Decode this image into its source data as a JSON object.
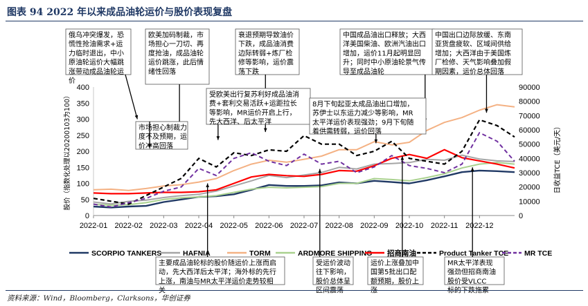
{
  "title": "图表 94   2022 年以来成品油轮运价与股价表现复盘",
  "source": "资料来源：Wind，Bloomberg，Clarksons，华创证券",
  "chart_data": {
    "type": "line",
    "ylabel_left": "股价（指数化处理以20200103为100）",
    "ylabel_right": "日收益TCE（美元/天）",
    "ylim_left": [
      0,
      400
    ],
    "ylim_right": [
      0,
      90000
    ],
    "yticks_left": [
      "0",
      "50",
      "100",
      "150",
      "200",
      "250",
      "300",
      "350",
      "400"
    ],
    "yticks_right": [
      "0",
      "10000",
      "20000",
      "30000",
      "40000",
      "50000",
      "60000",
      "70000",
      "80000",
      "90000"
    ],
    "x_range": [
      0,
      24
    ],
    "x_tick_positions": [
      0,
      2,
      4,
      6,
      8,
      10,
      12,
      14,
      16,
      18,
      20,
      22
    ],
    "x_tick_labels": [
      "2022-01",
      "2022-02",
      "2022-03",
      "2022-04",
      "2022-05",
      "2022-06",
      "2022-07",
      "2022-08",
      "2022-09",
      "2022-10",
      "2022-11",
      "2022-12"
    ],
    "series": [
      {
        "name": "SCORPIO TANKERS",
        "axis": "left",
        "color": "#1f3864",
        "style": "solid",
        "width": 2.4,
        "x": [
          0,
          1,
          2,
          3,
          4,
          5,
          6,
          7,
          8,
          9,
          10,
          11,
          12,
          13,
          14,
          15,
          16,
          17,
          18,
          19,
          20,
          21,
          22,
          23,
          24
        ],
        "y": [
          28,
          25,
          28,
          30,
          42,
          50,
          58,
          60,
          66,
          80,
          95,
          92,
          92,
          94,
          103,
          100,
          108,
          104,
          100,
          110,
          122,
          135,
          140,
          138,
          135
        ]
      },
      {
        "name": "HAFNIA",
        "axis": "left",
        "color": "#a5a5a5",
        "style": "solid",
        "width": 2,
        "x": [
          0,
          1,
          2,
          3,
          4,
          5,
          6,
          7,
          8,
          9,
          10,
          11,
          12,
          13,
          14,
          15,
          16,
          17,
          18,
          19,
          20,
          21,
          22,
          23,
          24
        ],
        "y": [
          42,
          36,
          44,
          48,
          56,
          62,
          66,
          76,
          92,
          108,
          125,
          118,
          126,
          134,
          150,
          145,
          160,
          162,
          165,
          175,
          172,
          188,
          176,
          170,
          168
        ]
      },
      {
        "name": "TORM",
        "axis": "left",
        "color": "#f4b183",
        "style": "solid",
        "width": 2,
        "x": [
          0,
          1,
          2,
          3,
          4,
          5,
          6,
          7,
          8,
          9,
          10,
          11,
          12,
          13,
          14,
          15,
          16,
          17,
          18,
          19,
          20,
          21,
          22,
          23,
          24
        ],
        "y": [
          80,
          82,
          78,
          84,
          92,
          96,
          104,
          115,
          140,
          160,
          172,
          166,
          175,
          185,
          205,
          205,
          230,
          220,
          228,
          265,
          290,
          305,
          328,
          345,
          338
        ]
      },
      {
        "name": "ARDMORE SHIPPING",
        "axis": "left",
        "color": "#a9d18e",
        "style": "solid",
        "width": 2,
        "x": [
          0,
          1,
          2,
          3,
          4,
          5,
          6,
          7,
          8,
          9,
          10,
          11,
          12,
          13,
          14,
          15,
          16,
          17,
          18,
          19,
          20,
          21,
          22,
          23,
          24
        ],
        "y": [
          35,
          32,
          34,
          40,
          50,
          55,
          58,
          62,
          72,
          82,
          88,
          86,
          88,
          90,
          100,
          100,
          115,
          112,
          108,
          118,
          130,
          148,
          160,
          165,
          160
        ]
      },
      {
        "name": "招商南油",
        "axis": "left",
        "color": "#ff0000",
        "style": "solid",
        "width": 2.2,
        "x": [
          0,
          1,
          2,
          3,
          4,
          5,
          6,
          7,
          8,
          9,
          10,
          11,
          12,
          13,
          14,
          15,
          16,
          17,
          18,
          19,
          20,
          21,
          22,
          23,
          24
        ],
        "y": [
          70,
          68,
          68,
          70,
          72,
          72,
          74,
          80,
          100,
          120,
          128,
          124,
          122,
          128,
          140,
          138,
          155,
          178,
          190,
          178,
          205,
          180,
          170,
          160,
          148
        ]
      },
      {
        "name": "Product Tanker TCE",
        "axis": "right",
        "color": "#000000",
        "style": "dash",
        "width": 2.2,
        "x": [
          0,
          1,
          2,
          3,
          4,
          5,
          6,
          7,
          8,
          9,
          10,
          11,
          12,
          13,
          14,
          15,
          16,
          17,
          18,
          19,
          20,
          21,
          22,
          23,
          24
        ],
        "y": [
          12000,
          10000,
          8000,
          14000,
          20000,
          26000,
          40000,
          34000,
          44000,
          42000,
          46000,
          45000,
          56000,
          50000,
          50000,
          42000,
          45000,
          52000,
          40000,
          38000,
          36000,
          45000,
          67000,
          63000,
          55000
        ]
      },
      {
        "name": "MR TCE",
        "axis": "right",
        "color": "#7030a0",
        "style": "dash",
        "width": 2,
        "x": [
          0,
          1,
          2,
          3,
          4,
          5,
          6,
          7,
          8,
          9,
          10,
          11,
          12,
          13,
          14,
          15,
          16,
          17,
          18,
          19,
          20,
          21,
          22,
          23,
          24
        ],
        "y": [
          8000,
          6000,
          9000,
          12000,
          17000,
          20000,
          33000,
          28000,
          40000,
          44000,
          38000,
          35000,
          43000,
          36000,
          38000,
          30000,
          34000,
          42000,
          35000,
          33000,
          30000,
          36000,
          58000,
          52000,
          38000
        ]
      }
    ],
    "annotations": [
      {
        "text": "俄乌冲突爆发，恐慌性抢油需求+运力临时退出，中小原油轮运价大幅跳涨带动成品油轮运价",
        "x": 2.5,
        "y_left": 300
      },
      {
        "text": "欧美加码制裁，市场担心一刀切、再度抢油，成品油轮运价跳涨，此后情绪性回落",
        "x": 4.9,
        "y_left": 240
      },
      {
        "text": "衰退预期导致油价下跌，成品油消费边际转弱+炼厂检修等影响，运价震荡下跌",
        "x": 9.8,
        "y_left": 260
      },
      {
        "text": "中国成品油出口释放；大西洋美国柴油、欧洲汽油出口增加，运价11月起明显回升；同时中小原油轮景气传导至成品油轮",
        "x": 18.9,
        "y_left": 290
      },
      {
        "text": "中国出口边际放缓、东南亚货盘疲软、区域间供给增加；大西洋由于美国炼厂检修、天气影响叠加假期因素，运价总体回落",
        "x": 22.4,
        "y_left": 320
      },
      {
        "text": "受欧美出行复苏利好成品油消费+套利交易活跃+运距拉长等影响，MR运价开启上行，先大西洋、后太平洋",
        "x": 7.1,
        "y_left": 235
      },
      {
        "text": "市场担心制裁力度不及预期，运价冲高回落",
        "x": 3.2,
        "y_left": 210
      },
      {
        "text": "8月下旬起亚太成品油出口增加，苏伊士以东运力减少等影响，MR太平洋运价表现强劲；9月下旬随着供需转弱，运价回落",
        "x": 16.1,
        "y_left": 225
      },
      {
        "text": "主要成品油轮标的股价随运价上涨而启动，先大西洋后太平洋；海外标的先行上涨，南油与MR太平洋运价走势较相关",
        "x": 6.5,
        "y_left": 100
      },
      {
        "text": "受运价波动往下影响，股价总体呈区间震荡",
        "x": 12.9,
        "y_left": 145
      },
      {
        "text": "运价上涨叠加中国第5批出口配额预期，股价上涨",
        "x": 17.6,
        "y_left": 185
      },
      {
        "text": "MR太平洋表现强劲但招商南油股价受VLCC标的下跌拖累",
        "x": 21.6,
        "y_left": 150
      }
    ]
  }
}
